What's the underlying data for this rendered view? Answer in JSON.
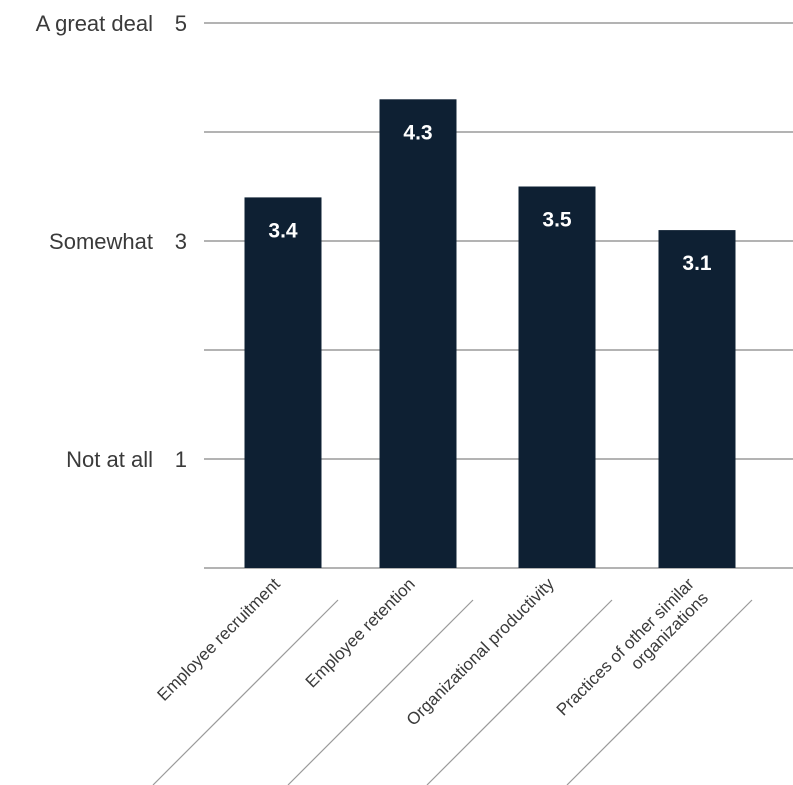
{
  "chart_data": {
    "type": "bar",
    "categories": [
      "Employee recruitment",
      "Employee retention",
      "Organizational productivity",
      [
        "Practices of other similar",
        "organizations"
      ]
    ],
    "values": [
      3.4,
      4.3,
      3.5,
      3.1
    ],
    "value_labels": [
      "3.4",
      "4.3",
      "3.5",
      "3.1"
    ],
    "y_ticks": [
      {
        "value": 5,
        "label": "5",
        "text": "A great deal"
      },
      {
        "value": 3,
        "label": "3",
        "text": "Somewhat"
      },
      {
        "value": 1,
        "label": "1",
        "text": "Not at all"
      }
    ],
    "gridlines": [
      5,
      4,
      3,
      2,
      1,
      0
    ],
    "ylim": [
      0,
      5
    ],
    "title": "",
    "xlabel": "",
    "ylabel": "",
    "grid": true,
    "legend": "none",
    "colors": {
      "bar": "#0e2033",
      "grid": "#9a9a9a",
      "text": "#3a3a3a",
      "value_text": "#ffffff"
    }
  }
}
